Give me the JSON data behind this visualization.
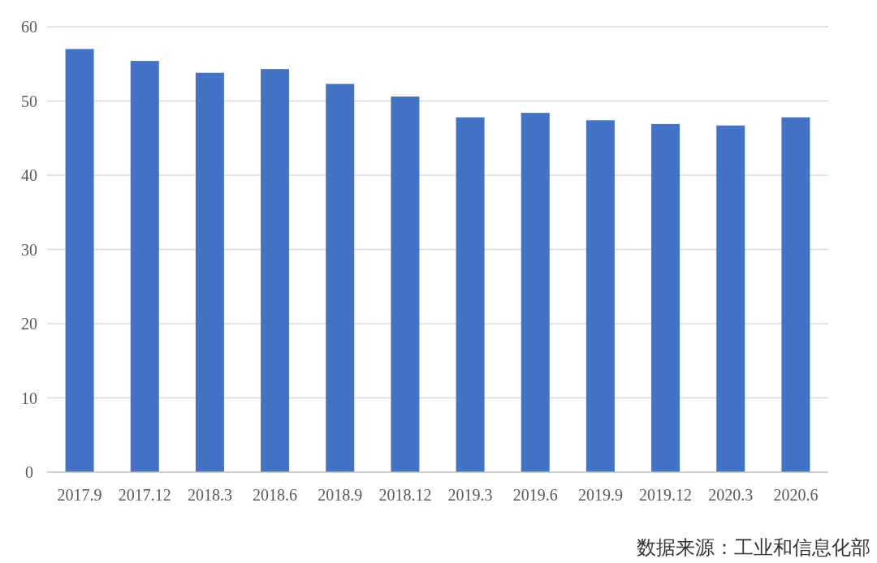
{
  "chart_data": {
    "type": "bar",
    "categories": [
      "2017.9",
      "2017.12",
      "2018.3",
      "2018.6",
      "2018.9",
      "2018.12",
      "2019.3",
      "2019.6",
      "2019.9",
      "2019.12",
      "2020.3",
      "2020.6"
    ],
    "values": [
      57.0,
      55.4,
      53.8,
      54.3,
      52.3,
      50.6,
      47.8,
      48.4,
      47.4,
      46.9,
      46.7,
      47.8
    ],
    "color": "#4472c4",
    "ylim": [
      0,
      60
    ],
    "yticks": [
      0,
      10,
      20,
      30,
      40,
      50,
      60
    ],
    "grid": "y",
    "annotations": [
      "数据来源：工业和信息化部"
    ]
  }
}
